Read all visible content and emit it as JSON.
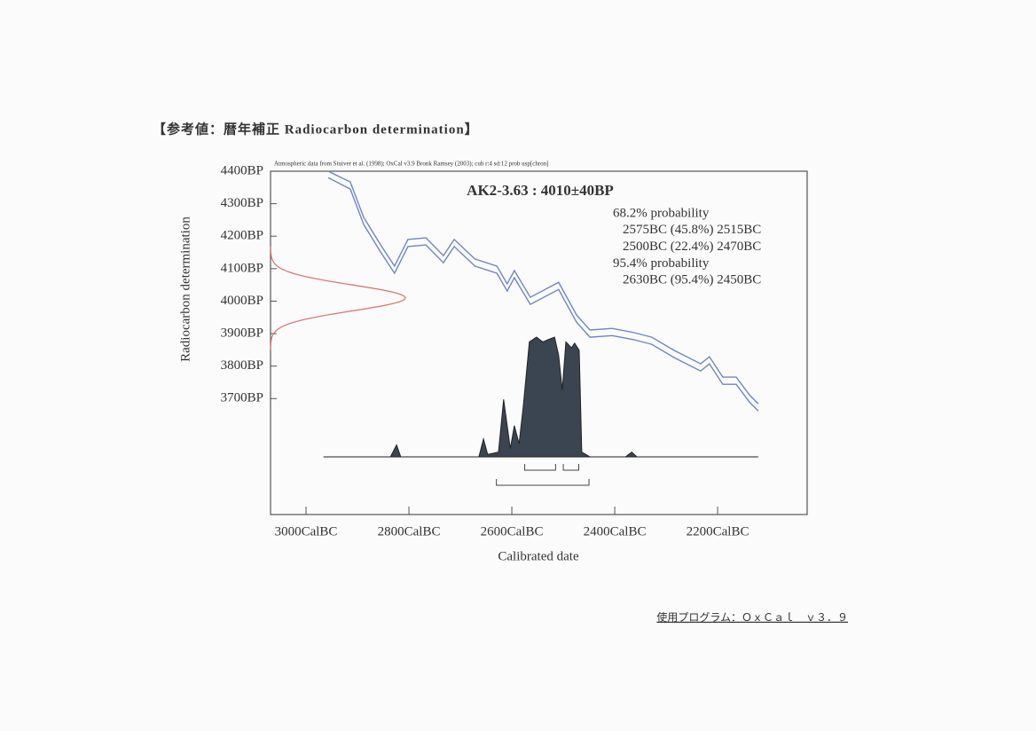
{
  "heading": "【参考値：暦年補正 Radiocarbon determination】",
  "footer": "使用プログラム：ＯｘＣａｌ　ｖ３．９",
  "chart_data": {
    "type": "oxcal",
    "source_note": "Atmospheric data from Stuiver et al. (1998); OxCal v3.9 Bronk Ramsey (2003); cub r:4 sd:12 prob usp[chron]",
    "title": "AK2-3.63 : 4010±40BP",
    "x_label": "Calibrated date",
    "y_label": "Radiocarbon determination",
    "legend_lines": [
      "68.2% probability",
      "2575BC (45.8%) 2515BC",
      "2500BC (22.4%) 2470BC",
      "95.4% probability",
      "2630BC (95.4%) 2450BC"
    ],
    "xlim": [
      3069,
      2026
    ],
    "ylim": [
      3343,
      4400
    ],
    "xticks": [
      {
        "value": 3000,
        "label": "3000CalBC"
      },
      {
        "value": 2800,
        "label": "2800CalBC"
      },
      {
        "value": 2600,
        "label": "2600CalBC"
      },
      {
        "value": 2400,
        "label": "2400CalBC"
      },
      {
        "value": 2200,
        "label": "2200CalBC"
      }
    ],
    "yticks": [
      {
        "value": 4400,
        "label": "4400BP"
      },
      {
        "value": 4300,
        "label": "4300BP"
      },
      {
        "value": 4200,
        "label": "4200BP"
      },
      {
        "value": 4100,
        "label": "4100BP"
      },
      {
        "value": 4000,
        "label": "4000BP"
      },
      {
        "value": 3900,
        "label": "3900BP"
      },
      {
        "value": 3800,
        "label": "3800BP"
      },
      {
        "value": 3700,
        "label": "3700BP"
      }
    ],
    "measurement": {
      "mean": 4010,
      "sd": 40,
      "color": "#d9706a"
    },
    "x": [
      2957,
      2914,
      2888,
      2853,
      2828,
      2802,
      2767,
      2733,
      2712,
      2672,
      2629,
      2609,
      2595,
      2564,
      2509,
      2474,
      2448,
      2405,
      2362,
      2328,
      2284,
      2233,
      2216,
      2190,
      2164,
      2138,
      2121
    ],
    "series": [
      {
        "color": "#6f86c8",
        "values": [
          4400,
          4367,
          4258,
          4168,
          4108,
          4190,
          4195,
          4140,
          4190,
          4130,
          4108,
          4053,
          4094,
          4012,
          4058,
          3957,
          3911,
          3916,
          3903,
          3889,
          3848,
          3807,
          3829,
          3766,
          3766,
          3711,
          3684
        ]
      },
      {
        "color": "#6f86c8",
        "values": [
          4380,
          4345,
          4236,
          4146,
          4086,
          4168,
          4173,
          4118,
          4168,
          4108,
          4086,
          4031,
          4072,
          3990,
          4036,
          3935,
          3889,
          3894,
          3881,
          3867,
          3826,
          3785,
          3807,
          3744,
          3744,
          3689,
          3662
        ]
      }
    ],
    "distribution": {
      "color": "#3b4551",
      "x": [
        2966,
        2836,
        2824,
        2816,
        2664,
        2655,
        2647,
        2626,
        2616,
        2603,
        2595,
        2586,
        2578,
        2566,
        2552,
        2540,
        2529,
        2517,
        2509,
        2502,
        2495,
        2484,
        2478,
        2469,
        2464,
        2448,
        2379,
        2367,
        2357,
        2121
      ],
      "values": [
        0,
        0,
        0.1,
        0,
        0,
        0.15,
        0.02,
        0.04,
        0.48,
        0.07,
        0.26,
        0.11,
        0.41,
        0.96,
        1.0,
        0.96,
        0.98,
        1.0,
        0.85,
        0.56,
        0.96,
        0.91,
        0.95,
        0.89,
        0.04,
        0,
        0,
        0.04,
        0,
        0
      ]
    },
    "ranges_68": [
      [
        2575,
        2515
      ],
      [
        2500,
        2470
      ]
    ],
    "ranges_95": [
      [
        2630,
        2450
      ]
    ]
  }
}
